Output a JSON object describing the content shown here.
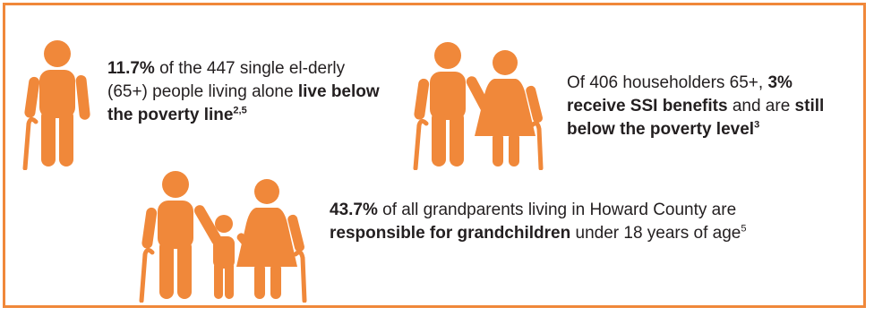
{
  "accent_color": "#f0883a",
  "icons": {
    "elderly_man": "elderly-man-with-cane-icon",
    "elderly_couple": "elderly-couple-icon",
    "grandparents_with_child": "grandparents-with-child-icon"
  },
  "stat1": {
    "percent": "11.7%",
    "text_a": " of the 447 single el-derly (65+) people living alone ",
    "bold": "live below the poverty line",
    "sup": "2,5"
  },
  "stat2": {
    "text_a": "Of 406 householders 65+, ",
    "percent": "3% receive SSI benefits",
    "text_b": " and are ",
    "bold": "still below the poverty level",
    "sup": "3"
  },
  "stat3": {
    "percent": "43.7%",
    "text_a": " of all grandparents living in Howard County are ",
    "bold": "responsible for grandchildren",
    "text_b": " under 18 years of age",
    "sup": "5"
  }
}
